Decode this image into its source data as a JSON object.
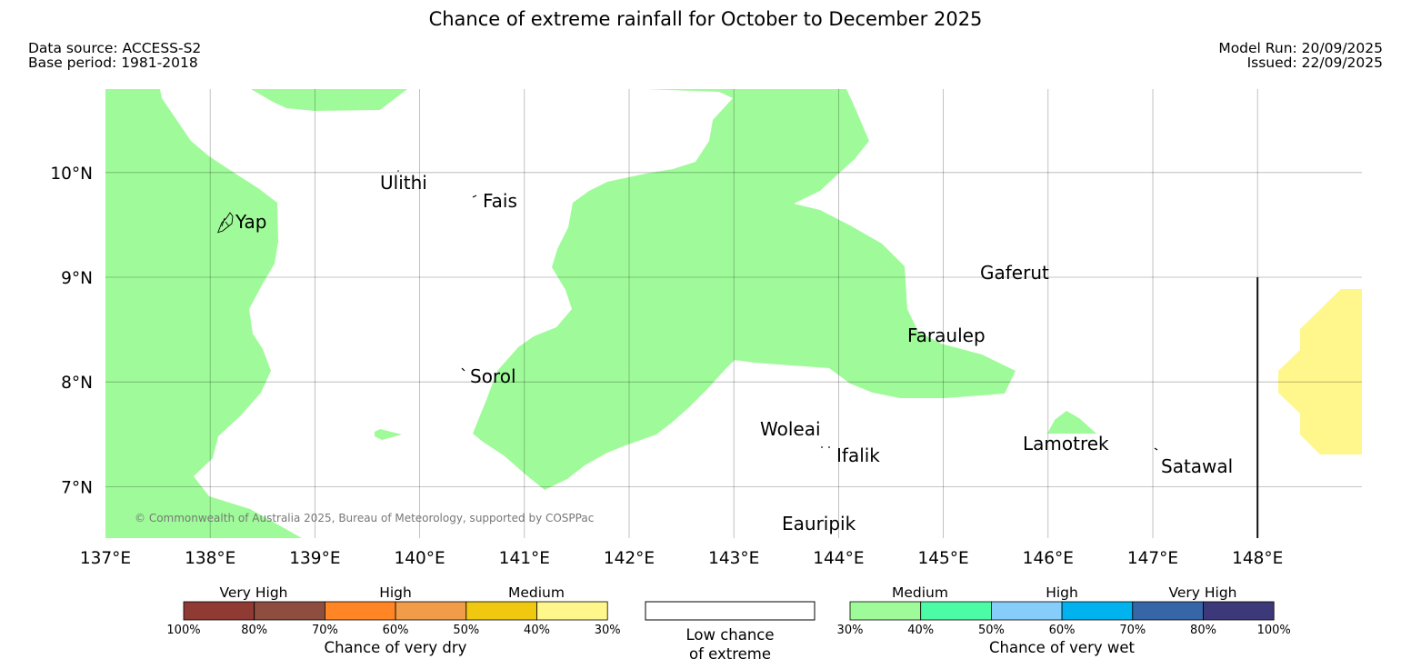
{
  "title": "Chance of extreme rainfall for October to December 2025",
  "header": {
    "data_source": "Data source: ACCESS-S2",
    "base_period": "Base period: 1981-2018",
    "model_run": "Model Run: 20/09/2025",
    "issued": "Issued: 22/09/2025"
  },
  "map": {
    "lon_range": [
      137,
      149
    ],
    "lat_range": [
      6.5,
      10.8
    ],
    "lon_ticks": [
      "137°E",
      "138°E",
      "139°E",
      "140°E",
      "141°E",
      "142°E",
      "143°E",
      "144°E",
      "145°E",
      "146°E",
      "147°E",
      "148°E"
    ],
    "lat_ticks": [
      "7°N",
      "8°N",
      "9°N",
      "10°N"
    ],
    "boundary_line_lon": 148.0,
    "copyright": "© Commonwealth of Australia 2025, Bureau of Meteorology, supported by COSPPac",
    "places": [
      {
        "name": "Yap",
        "lon": 138.2,
        "lat": 9.5
      },
      {
        "name": "Ulithi",
        "lon": 139.7,
        "lat": 10.0
      },
      {
        "name": "Fais",
        "lon": 140.5,
        "lat": 9.75
      },
      {
        "name": "Gaferut",
        "lon": 145.4,
        "lat": 9.2
      },
      {
        "name": "Faraulep",
        "lon": 144.6,
        "lat": 8.6
      },
      {
        "name": "Sorol",
        "lon": 140.4,
        "lat": 8.05
      },
      {
        "name": "Woleai",
        "lon": 143.9,
        "lat": 7.35
      },
      {
        "name": "Ifalik",
        "lon": 144.4,
        "lat": 7.25
      },
      {
        "name": "Lamotrek",
        "lon": 146.3,
        "lat": 7.5
      },
      {
        "name": "Satawal",
        "lon": 147.0,
        "lat": 7.3
      },
      {
        "name": "Eauripik",
        "lon": 143.1,
        "lat": 6.7
      }
    ],
    "regions": [
      {
        "category": "wet-medium",
        "color": "#9ffb99"
      },
      {
        "category": "dry-medium",
        "color": "#fff68c"
      }
    ]
  },
  "legend": {
    "dry": {
      "group_labels": [
        "Very High",
        "High",
        "Medium"
      ],
      "colors": [
        "#8f3a33",
        "#8d4e40",
        "#ff8525",
        "#f09c48",
        "#f0c810",
        "#fff68c"
      ],
      "ticks": [
        "100%",
        "80%",
        "70%",
        "60%",
        "50%",
        "40%",
        "30%"
      ],
      "title": "Chance of very dry"
    },
    "low": {
      "color": "#ffffff",
      "line1": "Low chance",
      "line2": "of extreme"
    },
    "wet": {
      "group_labels": [
        "Medium",
        "High",
        "Very High"
      ],
      "colors": [
        "#9ffb99",
        "#4cfba5",
        "#86cdf9",
        "#00b2ee",
        "#3666a8",
        "#3c3879"
      ],
      "ticks": [
        "30%",
        "40%",
        "50%",
        "60%",
        "70%",
        "80%",
        "100%"
      ],
      "title": "Chance of very wet"
    }
  }
}
